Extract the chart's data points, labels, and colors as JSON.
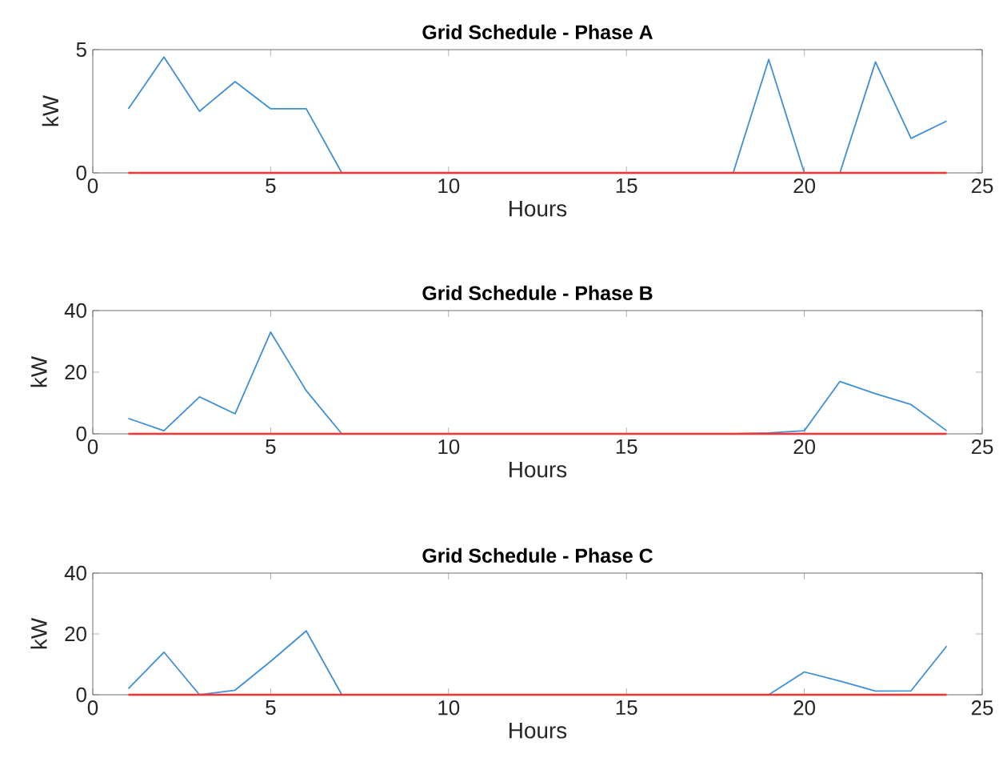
{
  "chart_data": [
    {
      "type": "line",
      "title": "Grid Schedule - Phase A",
      "xlabel": "Hours",
      "ylabel": "kW",
      "xlim": [
        0,
        25
      ],
      "xticks": [
        0,
        5,
        10,
        15,
        20,
        25
      ],
      "ylim": [
        0,
        5
      ],
      "yticks": [
        0,
        5
      ],
      "x": [
        1,
        2,
        3,
        4,
        5,
        6,
        7,
        8,
        9,
        10,
        11,
        12,
        13,
        14,
        15,
        16,
        17,
        18,
        19,
        20,
        21,
        22,
        23,
        24
      ],
      "series": [
        {
          "color": "#3d8fd6",
          "values": [
            2.6,
            4.7,
            2.5,
            3.7,
            2.6,
            2.6,
            0,
            0,
            0,
            0,
            0,
            0,
            0,
            0,
            0,
            0,
            0,
            0,
            4.6,
            0,
            0,
            4.5,
            1.4,
            2.1
          ]
        },
        {
          "color": "#ff3030",
          "values": [
            0,
            0,
            0,
            0,
            0,
            0,
            0,
            0,
            0,
            0,
            0,
            0,
            0,
            0,
            0,
            0,
            0,
            0,
            0,
            0,
            0,
            0,
            0,
            0
          ]
        }
      ]
    },
    {
      "type": "line",
      "title": "Grid Schedule - Phase B",
      "xlabel": "Hours",
      "ylabel": "kW",
      "xlim": [
        0,
        25
      ],
      "xticks": [
        0,
        5,
        10,
        15,
        20,
        25
      ],
      "ylim": [
        0,
        40
      ],
      "yticks": [
        0,
        20,
        40
      ],
      "x": [
        1,
        2,
        3,
        4,
        5,
        6,
        7,
        8,
        9,
        10,
        11,
        12,
        13,
        14,
        15,
        16,
        17,
        18,
        19,
        20,
        21,
        22,
        23,
        24
      ],
      "series": [
        {
          "color": "#3d8fd6",
          "values": [
            5,
            1,
            12,
            6.5,
            33,
            14,
            0,
            0,
            0,
            0,
            0,
            0,
            0,
            0,
            0,
            0,
            0,
            0,
            0.3,
            1,
            17,
            13,
            9.5,
            1
          ]
        },
        {
          "color": "#ff3030",
          "values": [
            0,
            0,
            0,
            0,
            0,
            0,
            0,
            0,
            0,
            0,
            0,
            0,
            0,
            0,
            0,
            0,
            0,
            0,
            0,
            0,
            0,
            0,
            0,
            0
          ]
        }
      ]
    },
    {
      "type": "line",
      "title": "Grid Schedule - Phase C",
      "xlabel": "Hours",
      "ylabel": "kW",
      "xlim": [
        0,
        25
      ],
      "xticks": [
        0,
        5,
        10,
        15,
        20,
        25
      ],
      "ylim": [
        0,
        40
      ],
      "yticks": [
        0,
        20,
        40
      ],
      "x": [
        1,
        2,
        3,
        4,
        5,
        6,
        7,
        8,
        9,
        10,
        11,
        12,
        13,
        14,
        15,
        16,
        17,
        18,
        19,
        20,
        21,
        22,
        23,
        24
      ],
      "series": [
        {
          "color": "#3d8fd6",
          "values": [
            2,
            14,
            0,
            1.5,
            11,
            21,
            0,
            0,
            0,
            0,
            0,
            0,
            0,
            0,
            0,
            0,
            0,
            0,
            0,
            7.5,
            4.5,
            1.2,
            1.3,
            16
          ]
        },
        {
          "color": "#ff3030",
          "values": [
            0,
            0,
            0,
            0,
            0,
            0,
            0,
            0,
            0,
            0,
            0,
            0,
            0,
            0,
            0,
            0,
            0,
            0,
            0,
            0,
            0,
            0,
            0,
            0
          ]
        }
      ]
    }
  ]
}
